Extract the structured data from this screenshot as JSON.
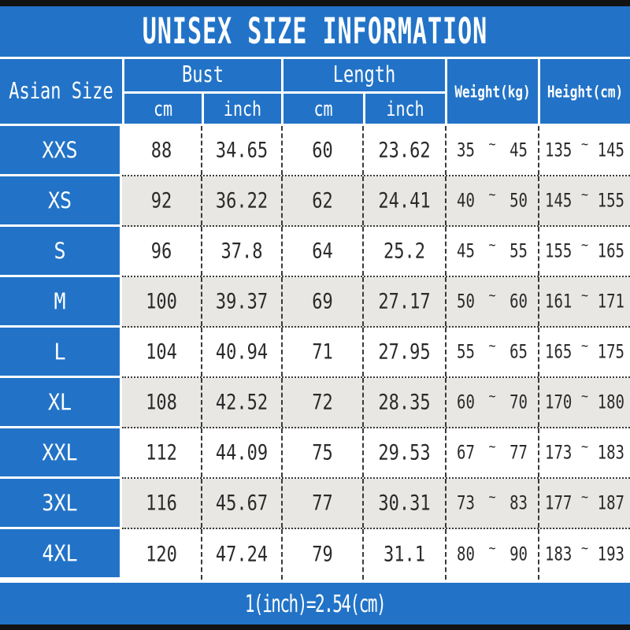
{
  "header": {
    "asian_size": "Asian Size",
    "bust": "Bust",
    "length": "Length",
    "cm": "cm",
    "inch": "inch",
    "weight": "Weight(kg)",
    "height": "Height(cm)"
  },
  "colors": {
    "blue": "#2273c7",
    "alt_row": "#e8e7e4",
    "black_bar": "#121212",
    "text": "#2a2a2a"
  },
  "chart_data": {
    "type": "table",
    "title": "UNISEX SIZE INFORMATION",
    "note": "1(inch)=2.54(cm)",
    "range_separator": "~",
    "columns": [
      "Asian Size",
      "Bust cm",
      "Bust inch",
      "Length cm",
      "Length inch",
      "Weight(kg)",
      "Height(cm)"
    ],
    "rows": [
      {
        "size": "XXS",
        "bust_cm": "88",
        "bust_inch": "34.65",
        "length_cm": "60",
        "length_inch": "23.62",
        "weight_min": "35",
        "weight_max": "45",
        "height_min": "135",
        "height_max": "145"
      },
      {
        "size": "XS",
        "bust_cm": "92",
        "bust_inch": "36.22",
        "length_cm": "62",
        "length_inch": "24.41",
        "weight_min": "40",
        "weight_max": "50",
        "height_min": "145",
        "height_max": "155"
      },
      {
        "size": "S",
        "bust_cm": "96",
        "bust_inch": "37.8",
        "length_cm": "64",
        "length_inch": "25.2",
        "weight_min": "45",
        "weight_max": "55",
        "height_min": "155",
        "height_max": "165"
      },
      {
        "size": "M",
        "bust_cm": "100",
        "bust_inch": "39.37",
        "length_cm": "69",
        "length_inch": "27.17",
        "weight_min": "50",
        "weight_max": "60",
        "height_min": "161",
        "height_max": "171"
      },
      {
        "size": "L",
        "bust_cm": "104",
        "bust_inch": "40.94",
        "length_cm": "71",
        "length_inch": "27.95",
        "weight_min": "55",
        "weight_max": "65",
        "height_min": "165",
        "height_max": "175"
      },
      {
        "size": "XL",
        "bust_cm": "108",
        "bust_inch": "42.52",
        "length_cm": "72",
        "length_inch": "28.35",
        "weight_min": "60",
        "weight_max": "70",
        "height_min": "170",
        "height_max": "180"
      },
      {
        "size": "XXL",
        "bust_cm": "112",
        "bust_inch": "44.09",
        "length_cm": "75",
        "length_inch": "29.53",
        "weight_min": "67",
        "weight_max": "77",
        "height_min": "173",
        "height_max": "183"
      },
      {
        "size": "3XL",
        "bust_cm": "116",
        "bust_inch": "45.67",
        "length_cm": "77",
        "length_inch": "30.31",
        "weight_min": "73",
        "weight_max": "83",
        "height_min": "177",
        "height_max": "187"
      },
      {
        "size": "4XL",
        "bust_cm": "120",
        "bust_inch": "47.24",
        "length_cm": "79",
        "length_inch": "31.1",
        "weight_min": "80",
        "weight_max": "90",
        "height_min": "183",
        "height_max": "193"
      }
    ]
  }
}
